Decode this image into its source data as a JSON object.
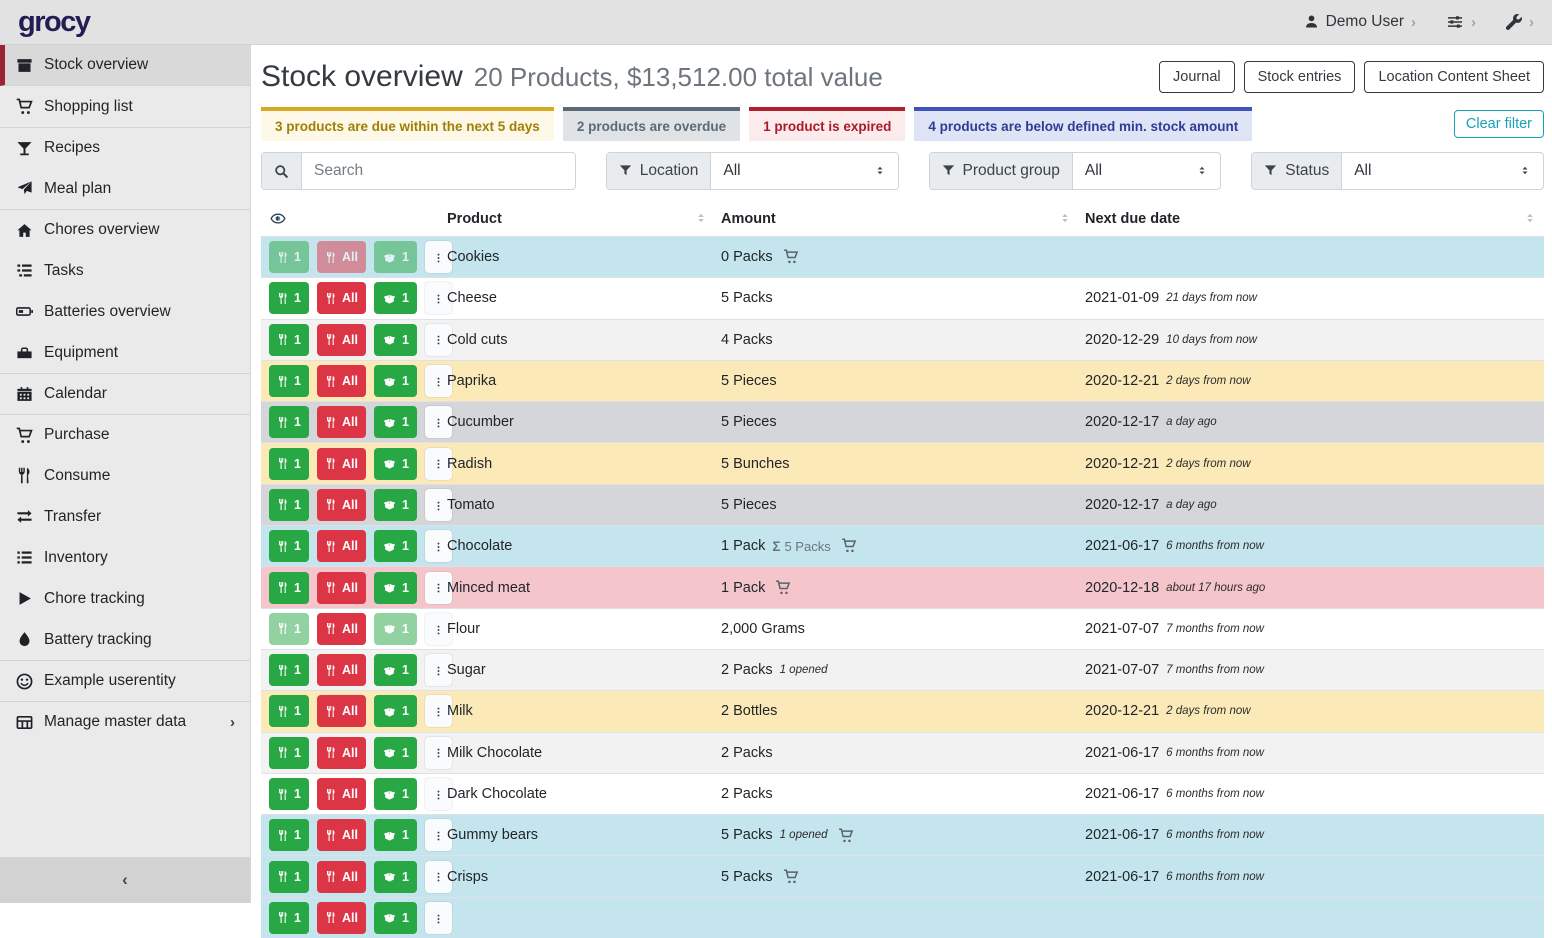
{
  "navbar": {
    "logo": "grocy",
    "user_label": "Demo User",
    "chevron": "›"
  },
  "sidebar": {
    "collapse_label": "‹",
    "items": [
      {
        "label": "Stock overview",
        "icon": "box",
        "active": true
      },
      {
        "label": "Shopping list",
        "icon": "cart"
      },
      {
        "label": "Recipes",
        "icon": "cocktail",
        "group_start": true
      },
      {
        "label": "Meal plan",
        "icon": "paper-plane"
      },
      {
        "label": "Chores overview",
        "icon": "home",
        "group_start": true
      },
      {
        "label": "Tasks",
        "icon": "tasks"
      },
      {
        "label": "Batteries overview",
        "icon": "battery"
      },
      {
        "label": "Equipment",
        "icon": "toolbox"
      },
      {
        "label": "Calendar",
        "icon": "calendar",
        "group_start": true
      },
      {
        "label": "Purchase",
        "icon": "cart",
        "group_start": true
      },
      {
        "label": "Consume",
        "icon": "utensils"
      },
      {
        "label": "Transfer",
        "icon": "transfer"
      },
      {
        "label": "Inventory",
        "icon": "list"
      },
      {
        "label": "Chore tracking",
        "icon": "play"
      },
      {
        "label": "Battery tracking",
        "icon": "drop"
      },
      {
        "label": "Example userentity",
        "icon": "smiley",
        "group_start": true
      },
      {
        "label": "Manage master data",
        "icon": "table",
        "group_start": true,
        "has_submenu": true,
        "submenu_chevron": "›"
      }
    ]
  },
  "header": {
    "title": "Stock overview",
    "subtitle": "20 Products, $13,512.00 total value",
    "buttons": [
      "Journal",
      "Stock entries",
      "Location Content Sheet"
    ]
  },
  "banners": [
    {
      "text": "3 products are due within the next 5 days",
      "type": "warning"
    },
    {
      "text": "2 products are overdue",
      "type": "secondary"
    },
    {
      "text": "1 product is expired",
      "type": "danger"
    },
    {
      "text": "4 products are below defined min. stock amount",
      "type": "primary"
    }
  ],
  "clear_filter_label": "Clear filter",
  "filters": {
    "search_placeholder": "Search",
    "groups": [
      {
        "label": "Location",
        "value": "All"
      },
      {
        "label": "Product group",
        "value": "All"
      },
      {
        "label": "Status",
        "value": "All"
      }
    ]
  },
  "table": {
    "columns": [
      "Product",
      "Amount",
      "Next due date"
    ],
    "buttons": {
      "consume_one": "1",
      "consume_all": "All",
      "open_one": "1"
    },
    "sigma": "Σ",
    "rows": [
      {
        "product": "Cookies",
        "amount": "0 Packs",
        "cart": true,
        "due_date": "",
        "due_note": "",
        "color": "info",
        "faded": [
          "consume1",
          "consumeAll",
          "open1"
        ]
      },
      {
        "product": "Cheese",
        "amount": "5 Packs",
        "due_date": "2021-01-09",
        "due_note": "21 days from now",
        "color": ""
      },
      {
        "product": "Cold cuts",
        "amount": "4 Packs",
        "due_date": "2020-12-29",
        "due_note": "10 days from now",
        "color": "stripe"
      },
      {
        "product": "Paprika",
        "amount": "5 Pieces",
        "due_date": "2020-12-21",
        "due_note": "2 days from now",
        "color": "warning"
      },
      {
        "product": "Cucumber",
        "amount": "5 Pieces",
        "due_date": "2020-12-17",
        "due_note": "a day ago",
        "color": "secondary"
      },
      {
        "product": "Radish",
        "amount": "5 Bunches",
        "due_date": "2020-12-21",
        "due_note": "2 days from now",
        "color": "warning"
      },
      {
        "product": "Tomato",
        "amount": "5 Pieces",
        "due_date": "2020-12-17",
        "due_note": "a day ago",
        "color": "secondary"
      },
      {
        "product": "Chocolate",
        "amount": "1 Pack",
        "sum_amount": "5 Packs",
        "cart": true,
        "due_date": "2021-06-17",
        "due_note": "6 months from now",
        "color": "info"
      },
      {
        "product": "Minced meat",
        "amount": "1 Pack",
        "cart": true,
        "due_date": "2020-12-18",
        "due_note": "about 17 hours ago",
        "color": "danger"
      },
      {
        "product": "Flour",
        "amount": "2,000 Grams",
        "due_date": "2021-07-07",
        "due_note": "7 months from now",
        "color": "",
        "faded": [
          "consume1",
          "open1"
        ]
      },
      {
        "product": "Sugar",
        "amount": "2 Packs",
        "amount_note": "1 opened",
        "due_date": "2021-07-07",
        "due_note": "7 months from now",
        "color": "stripe"
      },
      {
        "product": "Milk",
        "amount": "2 Bottles",
        "due_date": "2020-12-21",
        "due_note": "2 days from now",
        "color": "warning"
      },
      {
        "product": "Milk Chocolate",
        "amount": "2 Packs",
        "due_date": "2021-06-17",
        "due_note": "6 months from now",
        "color": "stripe"
      },
      {
        "product": "Dark Chocolate",
        "amount": "2 Packs",
        "due_date": "2021-06-17",
        "due_note": "6 months from now",
        "color": ""
      },
      {
        "product": "Gummy bears",
        "amount": "5 Packs",
        "amount_note": "1 opened",
        "cart": true,
        "due_date": "2021-06-17",
        "due_note": "6 months from now",
        "color": "info"
      },
      {
        "product": "Crisps",
        "amount": "5 Packs",
        "cart": true,
        "due_date": "2021-06-17",
        "due_note": "6 months from now",
        "color": "info"
      },
      {
        "product": "",
        "amount": "",
        "due_date": "",
        "due_note": "",
        "color": "info",
        "partial": true
      }
    ]
  }
}
